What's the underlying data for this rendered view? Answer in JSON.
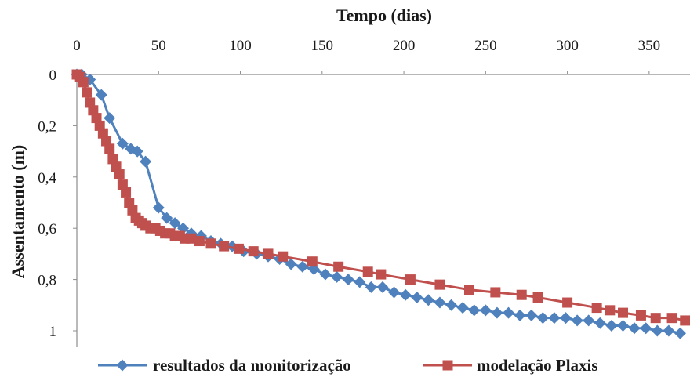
{
  "chart_data": {
    "type": "line",
    "title": "",
    "xlabel": "Tempo (dias)",
    "ylabel": "Assentamento (m)",
    "xlim": [
      0,
      375
    ],
    "ylim": [
      0,
      1.05
    ],
    "y_inverted": true,
    "x_axis_position": "top",
    "grid": false,
    "legend_position": "bottom",
    "x_ticks": [
      0,
      50,
      100,
      150,
      200,
      250,
      300,
      350
    ],
    "x_tick_labels": [
      "0",
      "50",
      "100",
      "150",
      "200",
      "250",
      "300",
      "350"
    ],
    "y_ticks": [
      0,
      0.2,
      0.4,
      0.6,
      0.8,
      1.0
    ],
    "y_tick_labels": [
      "0",
      "0,2",
      "0,4",
      "0,6",
      "0,8",
      "1"
    ],
    "series": [
      {
        "name": "resultados da monitorização",
        "color": "#4f81bd",
        "marker": "diamond",
        "points": [
          [
            0,
            0.0
          ],
          [
            3,
            0.0
          ],
          [
            8,
            0.02
          ],
          [
            15,
            0.08
          ],
          [
            20,
            0.17
          ],
          [
            28,
            0.27
          ],
          [
            33,
            0.29
          ],
          [
            37,
            0.3
          ],
          [
            42,
            0.34
          ],
          [
            50,
            0.52
          ],
          [
            55,
            0.56
          ],
          [
            60,
            0.58
          ],
          [
            65,
            0.6
          ],
          [
            70,
            0.62
          ],
          [
            76,
            0.63
          ],
          [
            82,
            0.65
          ],
          [
            88,
            0.66
          ],
          [
            95,
            0.67
          ],
          [
            102,
            0.69
          ],
          [
            110,
            0.7
          ],
          [
            117,
            0.71
          ],
          [
            124,
            0.72
          ],
          [
            131,
            0.74
          ],
          [
            138,
            0.75
          ],
          [
            145,
            0.76
          ],
          [
            152,
            0.78
          ],
          [
            159,
            0.79
          ],
          [
            166,
            0.8
          ],
          [
            173,
            0.81
          ],
          [
            180,
            0.83
          ],
          [
            187,
            0.83
          ],
          [
            194,
            0.85
          ],
          [
            201,
            0.86
          ],
          [
            208,
            0.87
          ],
          [
            215,
            0.88
          ],
          [
            222,
            0.89
          ],
          [
            229,
            0.9
          ],
          [
            236,
            0.91
          ],
          [
            243,
            0.92
          ],
          [
            250,
            0.92
          ],
          [
            257,
            0.93
          ],
          [
            264,
            0.93
          ],
          [
            271,
            0.94
          ],
          [
            278,
            0.94
          ],
          [
            285,
            0.95
          ],
          [
            292,
            0.95
          ],
          [
            299,
            0.95
          ],
          [
            306,
            0.96
          ],
          [
            313,
            0.96
          ],
          [
            320,
            0.97
          ],
          [
            327,
            0.98
          ],
          [
            334,
            0.98
          ],
          [
            341,
            0.99
          ],
          [
            348,
            0.99
          ],
          [
            355,
            1.0
          ],
          [
            362,
            1.0
          ],
          [
            369,
            1.01
          ]
        ]
      },
      {
        "name": "modelação Plaxis",
        "color": "#c0504d",
        "marker": "square",
        "points": [
          [
            0,
            0.0
          ],
          [
            2,
            0.01
          ],
          [
            4,
            0.03
          ],
          [
            6,
            0.07
          ],
          [
            8,
            0.11
          ],
          [
            10,
            0.14
          ],
          [
            12,
            0.17
          ],
          [
            14,
            0.2
          ],
          [
            16,
            0.23
          ],
          [
            18,
            0.26
          ],
          [
            20,
            0.29
          ],
          [
            22,
            0.33
          ],
          [
            24,
            0.36
          ],
          [
            26,
            0.39
          ],
          [
            28,
            0.43
          ],
          [
            30,
            0.46
          ],
          [
            32,
            0.5
          ],
          [
            34,
            0.53
          ],
          [
            36,
            0.56
          ],
          [
            38,
            0.57
          ],
          [
            40,
            0.58
          ],
          [
            42,
            0.59
          ],
          [
            45,
            0.6
          ],
          [
            48,
            0.6
          ],
          [
            51,
            0.61
          ],
          [
            54,
            0.62
          ],
          [
            57,
            0.62
          ],
          [
            60,
            0.63
          ],
          [
            63,
            0.63
          ],
          [
            66,
            0.64
          ],
          [
            70,
            0.64
          ],
          [
            75,
            0.65
          ],
          [
            82,
            0.66
          ],
          [
            90,
            0.67
          ],
          [
            99,
            0.68
          ],
          [
            108,
            0.69
          ],
          [
            117,
            0.7
          ],
          [
            126,
            0.71
          ],
          [
            144,
            0.73
          ],
          [
            160,
            0.75
          ],
          [
            178,
            0.77
          ],
          [
            186,
            0.78
          ],
          [
            204,
            0.8
          ],
          [
            222,
            0.82
          ],
          [
            240,
            0.84
          ],
          [
            256,
            0.85
          ],
          [
            272,
            0.86
          ],
          [
            282,
            0.87
          ],
          [
            300,
            0.89
          ],
          [
            318,
            0.91
          ],
          [
            326,
            0.92
          ],
          [
            334,
            0.93
          ],
          [
            345,
            0.94
          ],
          [
            354,
            0.95
          ],
          [
            364,
            0.95
          ],
          [
            372,
            0.96
          ],
          [
            378,
            0.96
          ]
        ]
      }
    ]
  }
}
